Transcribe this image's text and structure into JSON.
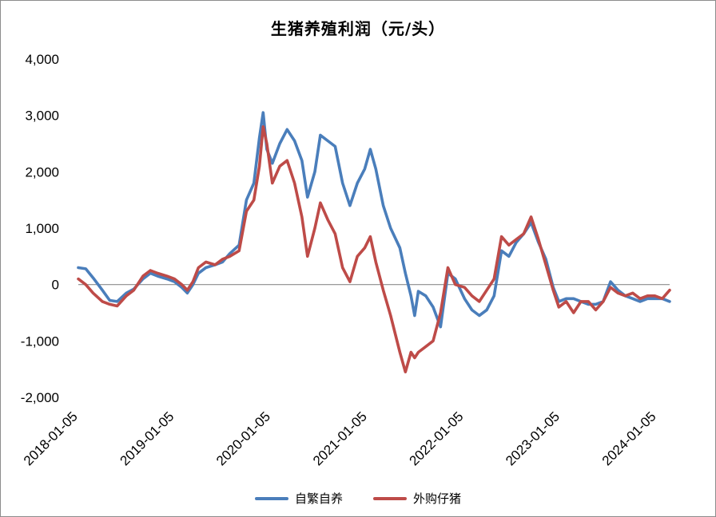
{
  "chart_data": {
    "type": "line",
    "title": "生猪养殖利润（元/头）",
    "xlabel": "",
    "ylabel": "",
    "ylim": [
      -2000,
      4000
    ],
    "yticks": [
      -2000,
      -1000,
      0,
      1000,
      2000,
      3000,
      4000
    ],
    "ytick_labels": [
      "-2,000",
      "-1,000",
      "0",
      "1,000",
      "2,000",
      "3,000",
      "4,000"
    ],
    "xtick_labels": [
      "2018-01-05",
      "2019-01-05",
      "2020-01-05",
      "2021-01-05",
      "2022-01-05",
      "2023-01-05",
      "2024-01-05"
    ],
    "x_start": "2018-01-05",
    "x_end": "2024-02-23",
    "zero_line": true,
    "grid": false,
    "legend_position": "bottom",
    "series": [
      {
        "name": "自繁自养",
        "color": "#4a7ebb",
        "points": [
          [
            "2018-01-05",
            300
          ],
          [
            "2018-02-02",
            280
          ],
          [
            "2018-03-02",
            120
          ],
          [
            "2018-04-06",
            -100
          ],
          [
            "2018-05-04",
            -280
          ],
          [
            "2018-06-01",
            -300
          ],
          [
            "2018-07-06",
            -150
          ],
          [
            "2018-08-03",
            -80
          ],
          [
            "2018-09-07",
            100
          ],
          [
            "2018-10-05",
            200
          ],
          [
            "2018-11-02",
            150
          ],
          [
            "2018-12-07",
            100
          ],
          [
            "2019-01-04",
            50
          ],
          [
            "2019-02-01",
            -50
          ],
          [
            "2019-02-22",
            -150
          ],
          [
            "2019-03-15",
            0
          ],
          [
            "2019-04-05",
            200
          ],
          [
            "2019-05-03",
            300
          ],
          [
            "2019-06-07",
            350
          ],
          [
            "2019-07-05",
            400
          ],
          [
            "2019-08-02",
            550
          ],
          [
            "2019-09-06",
            700
          ],
          [
            "2019-10-04",
            1500
          ],
          [
            "2019-11-01",
            1800
          ],
          [
            "2019-11-22",
            2600
          ],
          [
            "2019-12-06",
            3050
          ],
          [
            "2019-12-20",
            2400
          ],
          [
            "2020-01-10",
            2150
          ],
          [
            "2020-02-07",
            2500
          ],
          [
            "2020-03-06",
            2750
          ],
          [
            "2020-04-03",
            2550
          ],
          [
            "2020-05-01",
            2200
          ],
          [
            "2020-05-22",
            1550
          ],
          [
            "2020-06-19",
            2000
          ],
          [
            "2020-07-10",
            2650
          ],
          [
            "2020-08-07",
            2550
          ],
          [
            "2020-09-04",
            2450
          ],
          [
            "2020-10-02",
            1800
          ],
          [
            "2020-10-30",
            1400
          ],
          [
            "2020-11-27",
            1800
          ],
          [
            "2020-12-25",
            2050
          ],
          [
            "2021-01-15",
            2400
          ],
          [
            "2021-02-05",
            2050
          ],
          [
            "2021-03-05",
            1400
          ],
          [
            "2021-04-02",
            1000
          ],
          [
            "2021-05-07",
            650
          ],
          [
            "2021-05-28",
            200
          ],
          [
            "2021-06-18",
            -200
          ],
          [
            "2021-07-02",
            -550
          ],
          [
            "2021-07-16",
            -120
          ],
          [
            "2021-08-13",
            -200
          ],
          [
            "2021-09-10",
            -400
          ],
          [
            "2021-10-08",
            -750
          ],
          [
            "2021-11-05",
            200
          ],
          [
            "2021-12-03",
            100
          ],
          [
            "2022-01-07",
            -250
          ],
          [
            "2022-02-04",
            -450
          ],
          [
            "2022-03-04",
            -550
          ],
          [
            "2022-04-01",
            -450
          ],
          [
            "2022-04-29",
            -200
          ],
          [
            "2022-05-27",
            600
          ],
          [
            "2022-06-24",
            500
          ],
          [
            "2022-07-22",
            750
          ],
          [
            "2022-08-19",
            900
          ],
          [
            "2022-09-16",
            1100
          ],
          [
            "2022-10-14",
            750
          ],
          [
            "2022-11-11",
            450
          ],
          [
            "2022-12-09",
            -50
          ],
          [
            "2022-12-30",
            -300
          ],
          [
            "2023-01-27",
            -250
          ],
          [
            "2023-02-24",
            -250
          ],
          [
            "2023-03-24",
            -300
          ],
          [
            "2023-04-21",
            -350
          ],
          [
            "2023-05-19",
            -350
          ],
          [
            "2023-06-16",
            -300
          ],
          [
            "2023-07-14",
            50
          ],
          [
            "2023-08-11",
            -100
          ],
          [
            "2023-09-08",
            -200
          ],
          [
            "2023-10-06",
            -250
          ],
          [
            "2023-11-03",
            -300
          ],
          [
            "2023-12-01",
            -250
          ],
          [
            "2023-12-29",
            -250
          ],
          [
            "2024-01-26",
            -250
          ],
          [
            "2024-02-23",
            -300
          ]
        ]
      },
      {
        "name": "外购仔猪",
        "color": "#be4b48",
        "points": [
          [
            "2018-01-05",
            100
          ],
          [
            "2018-02-02",
            0
          ],
          [
            "2018-03-02",
            -150
          ],
          [
            "2018-04-06",
            -300
          ],
          [
            "2018-05-04",
            -350
          ],
          [
            "2018-06-01",
            -380
          ],
          [
            "2018-07-06",
            -200
          ],
          [
            "2018-08-03",
            -100
          ],
          [
            "2018-09-07",
            150
          ],
          [
            "2018-10-05",
            250
          ],
          [
            "2018-11-02",
            200
          ],
          [
            "2018-12-07",
            150
          ],
          [
            "2019-01-04",
            100
          ],
          [
            "2019-02-01",
            0
          ],
          [
            "2019-02-22",
            -100
          ],
          [
            "2019-03-15",
            50
          ],
          [
            "2019-04-05",
            300
          ],
          [
            "2019-05-03",
            400
          ],
          [
            "2019-06-07",
            350
          ],
          [
            "2019-07-05",
            450
          ],
          [
            "2019-08-02",
            500
          ],
          [
            "2019-09-06",
            600
          ],
          [
            "2019-10-04",
            1300
          ],
          [
            "2019-11-01",
            1500
          ],
          [
            "2019-11-22",
            2100
          ],
          [
            "2019-12-06",
            2800
          ],
          [
            "2019-12-20",
            2500
          ],
          [
            "2020-01-10",
            1800
          ],
          [
            "2020-02-07",
            2100
          ],
          [
            "2020-03-06",
            2200
          ],
          [
            "2020-04-03",
            1800
          ],
          [
            "2020-05-01",
            1200
          ],
          [
            "2020-05-22",
            500
          ],
          [
            "2020-06-19",
            1000
          ],
          [
            "2020-07-10",
            1450
          ],
          [
            "2020-08-07",
            1150
          ],
          [
            "2020-09-04",
            900
          ],
          [
            "2020-10-02",
            300
          ],
          [
            "2020-10-30",
            50
          ],
          [
            "2020-11-27",
            500
          ],
          [
            "2020-12-25",
            650
          ],
          [
            "2021-01-15",
            850
          ],
          [
            "2021-02-05",
            400
          ],
          [
            "2021-03-05",
            -100
          ],
          [
            "2021-04-02",
            -550
          ],
          [
            "2021-05-07",
            -1200
          ],
          [
            "2021-05-28",
            -1550
          ],
          [
            "2021-06-18",
            -1200
          ],
          [
            "2021-07-02",
            -1300
          ],
          [
            "2021-07-16",
            -1200
          ],
          [
            "2021-08-13",
            -1100
          ],
          [
            "2021-09-10",
            -1000
          ],
          [
            "2021-10-08",
            -500
          ],
          [
            "2021-11-05",
            300
          ],
          [
            "2021-12-03",
            0
          ],
          [
            "2022-01-07",
            -50
          ],
          [
            "2022-02-04",
            -200
          ],
          [
            "2022-03-04",
            -300
          ],
          [
            "2022-04-01",
            -100
          ],
          [
            "2022-04-29",
            100
          ],
          [
            "2022-05-27",
            850
          ],
          [
            "2022-06-24",
            700
          ],
          [
            "2022-07-22",
            800
          ],
          [
            "2022-08-19",
            900
          ],
          [
            "2022-09-16",
            1200
          ],
          [
            "2022-10-14",
            800
          ],
          [
            "2022-11-11",
            350
          ],
          [
            "2022-12-09",
            -100
          ],
          [
            "2022-12-30",
            -400
          ],
          [
            "2023-01-27",
            -300
          ],
          [
            "2023-02-24",
            -500
          ],
          [
            "2023-03-24",
            -300
          ],
          [
            "2023-04-21",
            -300
          ],
          [
            "2023-05-19",
            -450
          ],
          [
            "2023-06-16",
            -300
          ],
          [
            "2023-07-14",
            -50
          ],
          [
            "2023-08-11",
            -150
          ],
          [
            "2023-09-08",
            -200
          ],
          [
            "2023-10-06",
            -150
          ],
          [
            "2023-11-03",
            -250
          ],
          [
            "2023-12-01",
            -200
          ],
          [
            "2023-12-29",
            -200
          ],
          [
            "2024-01-26",
            -250
          ],
          [
            "2024-02-23",
            -100
          ]
        ]
      }
    ]
  }
}
